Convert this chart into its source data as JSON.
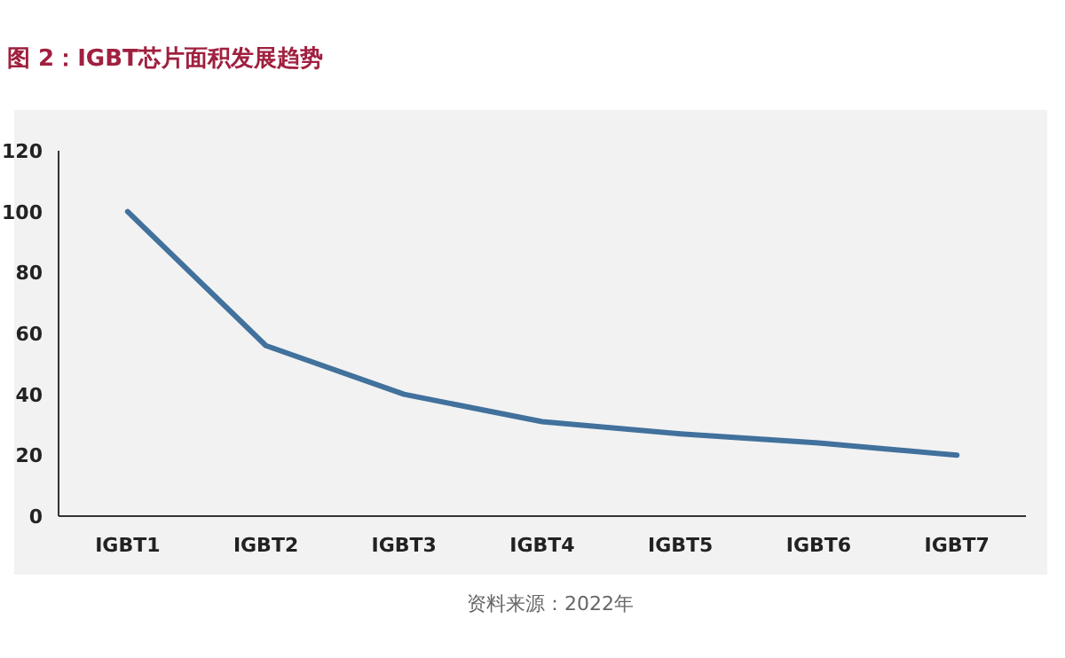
{
  "chart_data": {
    "type": "line",
    "title": "图 2：IGBT芯片面积发展趋势",
    "categories": [
      "IGBT1",
      "IGBT2",
      "IGBT3",
      "IGBT4",
      "IGBT5",
      "IGBT6",
      "IGBT7"
    ],
    "series": [
      {
        "color": "#41719c",
        "values": [
          100,
          56,
          40,
          31,
          27,
          24,
          20
        ]
      }
    ],
    "ylim": [
      0,
      120
    ],
    "yticks": [
      0,
      20,
      40,
      60,
      80,
      100,
      120
    ],
    "grid": false,
    "marker": "none",
    "line_style": "solid",
    "annotations": [
      "资料来源：2022年"
    ]
  }
}
